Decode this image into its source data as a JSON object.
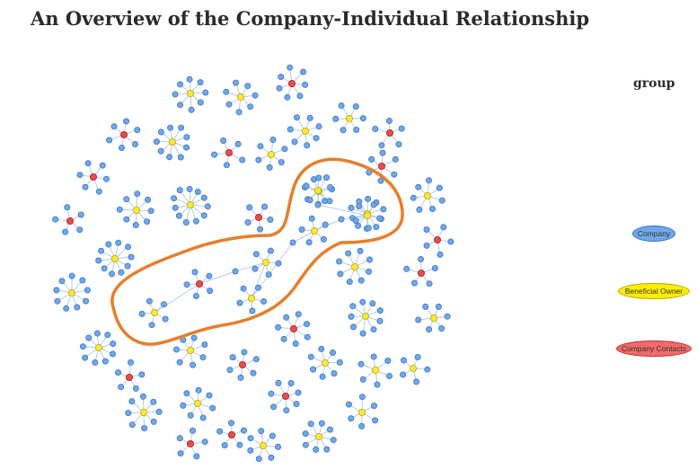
{
  "title": "An Overview of the Company-Individual Relationship",
  "legend": {
    "title": "group",
    "items": [
      {
        "label": "Company",
        "fill": "#6fa8e8",
        "stroke": "#3f74c4"
      },
      {
        "label": "Beneficial Owner",
        "fill": "#ffee00",
        "stroke": "#b8a800"
      },
      {
        "label": "Company Contacts",
        "fill": "#f26a6a",
        "stroke": "#c03030"
      }
    ]
  },
  "colors": {
    "company": "#6fa8e8",
    "company_stroke": "#3f74c4",
    "owner": "#ffe83a",
    "owner_stroke": "#b8a800",
    "contact": "#ec4b4b",
    "contact_stroke": "#a82020",
    "edge": "#b5cbe8",
    "highlight": "#e67e2e"
  }
}
